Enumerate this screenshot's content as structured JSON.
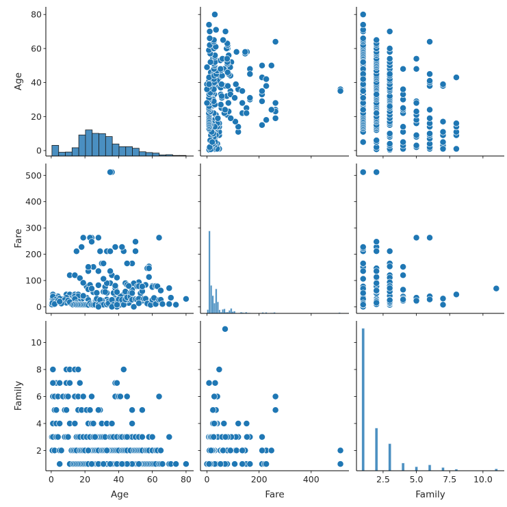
{
  "chart_data": {
    "type": "scatter",
    "kind": "pairplot",
    "grid": false,
    "variables": [
      "Age",
      "Fare",
      "Family"
    ],
    "colors": {
      "marker": "#1f77b4",
      "marker_edge": "#ffffff",
      "hist_fill": "#4a8fc1",
      "age_hist_edge": "#1a1a1a",
      "hist_edge": "#d9e6f0",
      "axis": "#000000"
    },
    "axes": {
      "Age": {
        "label": "Age",
        "lim": [
          -3.2,
          84.5
        ],
        "ticks": [
          0,
          20,
          40,
          60,
          80
        ],
        "tick_labels": [
          "0",
          "20",
          "40",
          "60",
          "80"
        ]
      },
      "Fare": {
        "label": "Fare",
        "lim": [
          -25,
          545
        ],
        "ticks": [
          0,
          100,
          200,
          300,
          400,
          500
        ],
        "tick_labels": [
          "0",
          "100",
          "200",
          "300",
          "400",
          "500"
        ],
        "x_ticks": [
          0,
          200,
          400
        ],
        "x_tick_labels": [
          "0",
          "200",
          "400"
        ]
      },
      "Family": {
        "label": "Family",
        "lim": [
          0.5,
          11.6
        ],
        "ticks": [
          2,
          4,
          6,
          8,
          10
        ],
        "tick_labels": [
          "2",
          "4",
          "6",
          "8",
          "10"
        ],
        "x_ticks": [
          2.5,
          5.0,
          7.5,
          10.0
        ],
        "x_tick_labels": [
          "2.5",
          "5.0",
          "7.5",
          "10.0"
        ]
      }
    },
    "diagonal": {
      "Age": {
        "type": "hist",
        "bin_start": 0.42,
        "bin_width": 3.98,
        "counts": [
          40,
          14,
          15,
          31,
          79,
          98,
          85,
          84,
          73,
          45,
          35,
          35,
          29,
          16,
          13,
          11,
          4,
          5,
          1,
          1
        ]
      },
      "Fare": {
        "type": "hist",
        "bin_start": 0,
        "bin_width": 6.4,
        "counts": [
          15,
          330,
          112,
          71,
          41,
          98,
          46,
          14,
          5,
          16,
          18,
          5,
          5,
          12,
          20,
          7,
          9,
          2,
          0,
          1,
          5,
          3,
          2,
          5,
          2,
          2,
          0,
          0,
          0,
          0,
          0,
          0,
          0,
          4,
          0,
          4,
          0,
          0,
          2,
          2,
          4,
          0,
          0,
          0,
          0,
          0,
          0,
          0,
          0,
          0,
          0,
          0,
          0,
          0,
          0,
          0,
          0,
          0,
          0,
          0,
          0,
          0,
          0,
          0,
          0,
          0,
          0,
          0,
          0,
          0,
          0,
          0,
          0,
          0,
          0,
          0,
          0,
          0,
          0,
          3
        ]
      },
      "Family": {
        "type": "hist",
        "bin_width": 0.2,
        "values": [
          1,
          2,
          3,
          4,
          5,
          6,
          7,
          8,
          11
        ],
        "counts": [
          537,
          161,
          102,
          29,
          15,
          22,
          12,
          6,
          7
        ]
      }
    },
    "record_fields": [
      "Age",
      "Fare",
      "Family"
    ],
    "records": [
      [
        1,
        46.9,
        8
      ],
      [
        9,
        46.9,
        8
      ],
      [
        11,
        46.9,
        8
      ],
      [
        14,
        46.9,
        8
      ],
      [
        16,
        46.9,
        8
      ],
      [
        43,
        46.9,
        8
      ],
      [
        2,
        31.3,
        7
      ],
      [
        4,
        31.3,
        7
      ],
      [
        9,
        31.3,
        7
      ],
      [
        11,
        31.3,
        7
      ],
      [
        17,
        7.9,
        7
      ],
      [
        38,
        31.3,
        7
      ],
      [
        39,
        31.3,
        7
      ],
      [
        3,
        31.4,
        7
      ],
      [
        5,
        31.4,
        7
      ],
      [
        1,
        7.9,
        7
      ],
      [
        1,
        39.7,
        6
      ],
      [
        2,
        29.1,
        6
      ],
      [
        4,
        39.7,
        6
      ],
      [
        7,
        29.1,
        6
      ],
      [
        9,
        27.9,
        6
      ],
      [
        10,
        27.9,
        6
      ],
      [
        14,
        39.7,
        6
      ],
      [
        16,
        39.7,
        6
      ],
      [
        19,
        263,
        6
      ],
      [
        24,
        263,
        6
      ],
      [
        38,
        31.4,
        6
      ],
      [
        40,
        29.1,
        6
      ],
      [
        41,
        39.7,
        6
      ],
      [
        45,
        27.9,
        6
      ],
      [
        64,
        263,
        6
      ],
      [
        2,
        21.1,
        5
      ],
      [
        3,
        34.4,
        5
      ],
      [
        8,
        21.1,
        5
      ],
      [
        9,
        34.4,
        5
      ],
      [
        16,
        20.3,
        5
      ],
      [
        18,
        20.2,
        5
      ],
      [
        21,
        34.4,
        5
      ],
      [
        29,
        21.1,
        5
      ],
      [
        48,
        34.4,
        5
      ],
      [
        54,
        23,
        5
      ],
      [
        23,
        263,
        5
      ],
      [
        28,
        263,
        5
      ],
      [
        0.8,
        29,
        4
      ],
      [
        1,
        39,
        4
      ],
      [
        3,
        27.9,
        4
      ],
      [
        5,
        31.4,
        4
      ],
      [
        11,
        120,
        4
      ],
      [
        14,
        120,
        4
      ],
      [
        22,
        26,
        4
      ],
      [
        24,
        65,
        4
      ],
      [
        25,
        152,
        4
      ],
      [
        30,
        23,
        4
      ],
      [
        33,
        27.8,
        4
      ],
      [
        36,
        120,
        4
      ],
      [
        48,
        65,
        4
      ],
      [
        0.4,
        8.5,
        3
      ],
      [
        1,
        20.6,
        3
      ],
      [
        3,
        15.2,
        3
      ],
      [
        4,
        23,
        3
      ],
      [
        8,
        26,
        3
      ],
      [
        9,
        15.2,
        3
      ],
      [
        10,
        24.1,
        3
      ],
      [
        15,
        211.3,
        3
      ],
      [
        16,
        20.2,
        3
      ],
      [
        17,
        7.2,
        3
      ],
      [
        19,
        41.6,
        3
      ],
      [
        21,
        77,
        3
      ],
      [
        23,
        83.2,
        3
      ],
      [
        25,
        151.6,
        3
      ],
      [
        27,
        12.5,
        3
      ],
      [
        29,
        211.3,
        3
      ],
      [
        30,
        164.9,
        3
      ],
      [
        31,
        18.8,
        3
      ],
      [
        32,
        15.2,
        3
      ],
      [
        35,
        20.5,
        3
      ],
      [
        36,
        120,
        3
      ],
      [
        37,
        24.1,
        3
      ],
      [
        39,
        110.9,
        3
      ],
      [
        41,
        18.8,
        3
      ],
      [
        42,
        20.5,
        3
      ],
      [
        44,
        57.9,
        3
      ],
      [
        46,
        14.5,
        3
      ],
      [
        48,
        164.9,
        3
      ],
      [
        50,
        211.5,
        3
      ],
      [
        52,
        93.5,
        3
      ],
      [
        54,
        77.3,
        3
      ],
      [
        58,
        153.5,
        3
      ],
      [
        60,
        79.2,
        3
      ],
      [
        70,
        71,
        3
      ],
      [
        26,
        19.3,
        3
      ],
      [
        45,
        26.3,
        3
      ],
      [
        0.7,
        14.5,
        2
      ],
      [
        2,
        10.5,
        2
      ],
      [
        5,
        19.3,
        2
      ],
      [
        6,
        12.5,
        2
      ],
      [
        12,
        11.2,
        2
      ],
      [
        13,
        19.5,
        2
      ],
      [
        14,
        30,
        2
      ],
      [
        15,
        14.5,
        2
      ],
      [
        17,
        108.9,
        2
      ],
      [
        18,
        227.5,
        2
      ],
      [
        19,
        91.1,
        2
      ],
      [
        20,
        9.8,
        2
      ],
      [
        22,
        66.6,
        2
      ],
      [
        24,
        247.5,
        2
      ],
      [
        25,
        55.4,
        2
      ],
      [
        26,
        14.5,
        2
      ],
      [
        27,
        53.1,
        2
      ],
      [
        28,
        82.2,
        2
      ],
      [
        30,
        24,
        2
      ],
      [
        31,
        57,
        2
      ],
      [
        32,
        76.3,
        2
      ],
      [
        33,
        53.1,
        2
      ],
      [
        34,
        21,
        2
      ],
      [
        35,
        90,
        2
      ],
      [
        36,
        512.3,
        2
      ],
      [
        37,
        52.6,
        2
      ],
      [
        38,
        71.3,
        2
      ],
      [
        39,
        55.9,
        2
      ],
      [
        40,
        9.5,
        2
      ],
      [
        42,
        227.5,
        2
      ],
      [
        43,
        211.5,
        2
      ],
      [
        44,
        90,
        2
      ],
      [
        45,
        83.5,
        2
      ],
      [
        47,
        52,
        2
      ],
      [
        49,
        89.1,
        2
      ],
      [
        50,
        247.5,
        2
      ],
      [
        51,
        77.9,
        2
      ],
      [
        52,
        78.3,
        2
      ],
      [
        53,
        51.5,
        2
      ],
      [
        54,
        59.4,
        2
      ],
      [
        56,
        83.2,
        2
      ],
      [
        57,
        146.5,
        2
      ],
      [
        58,
        113.3,
        2
      ],
      [
        60,
        75.3,
        2
      ],
      [
        62,
        79.2,
        2
      ],
      [
        63,
        77.9,
        2
      ],
      [
        65,
        61.9,
        2
      ],
      [
        22,
        135.6,
        2
      ],
      [
        33,
        90,
        2
      ],
      [
        5,
        20,
        1
      ],
      [
        11,
        18,
        1
      ],
      [
        13,
        8,
        1
      ],
      [
        14,
        9,
        1
      ],
      [
        15,
        8,
        1
      ],
      [
        16,
        8,
        1
      ],
      [
        17,
        7.9,
        1
      ],
      [
        18,
        7.8,
        1
      ],
      [
        19,
        8,
        1
      ],
      [
        20,
        7.9,
        1
      ],
      [
        21,
        8,
        1
      ],
      [
        22,
        7.3,
        1
      ],
      [
        23,
        13,
        1
      ],
      [
        24,
        7.9,
        1
      ],
      [
        25,
        7.2,
        1
      ],
      [
        26,
        8,
        1
      ],
      [
        27,
        30.5,
        1
      ],
      [
        28,
        7.9,
        1
      ],
      [
        29,
        26,
        1
      ],
      [
        30,
        8,
        1
      ],
      [
        31,
        7.8,
        1
      ],
      [
        32,
        56.5,
        1
      ],
      [
        33,
        8.7,
        1
      ],
      [
        34,
        13,
        1
      ],
      [
        35,
        512.3,
        1
      ],
      [
        36,
        26.3,
        1
      ],
      [
        37,
        7.9,
        1
      ],
      [
        38,
        80,
        1
      ],
      [
        39,
        0,
        1
      ],
      [
        40,
        27.7,
        1
      ],
      [
        41,
        7.9,
        1
      ],
      [
        42,
        26.6,
        1
      ],
      [
        43,
        8,
        1
      ],
      [
        44,
        27.7,
        1
      ],
      [
        45,
        35.5,
        1
      ],
      [
        46,
        79.2,
        1
      ],
      [
        47,
        38.5,
        1
      ],
      [
        48,
        26.6,
        1
      ],
      [
        49,
        0,
        1
      ],
      [
        50,
        28.7,
        1
      ],
      [
        51,
        26.6,
        1
      ],
      [
        52,
        30.5,
        1
      ],
      [
        54,
        77.3,
        1
      ],
      [
        55,
        30.5,
        1
      ],
      [
        56,
        30.7,
        1
      ],
      [
        57,
        12.4,
        1
      ],
      [
        58,
        146.5,
        1
      ],
      [
        59,
        7.3,
        1
      ],
      [
        60,
        26.5,
        1
      ],
      [
        61,
        33.5,
        1
      ],
      [
        62,
        10.5,
        1
      ],
      [
        64,
        26,
        1
      ],
      [
        65,
        26.6,
        1
      ],
      [
        66,
        10.5,
        1
      ],
      [
        70,
        10.5,
        1
      ],
      [
        71,
        34.7,
        1
      ],
      [
        74,
        7.8,
        1
      ],
      [
        80,
        30,
        1
      ],
      [
        28,
        135.6,
        1
      ],
      [
        22,
        151.6,
        1
      ],
      [
        38,
        227.5,
        1
      ],
      [
        33,
        211.3,
        1
      ],
      [
        35,
        135.6,
        1
      ],
      [
        24,
        69.3,
        1
      ],
      [
        31,
        106.4,
        1
      ],
      [
        48,
        52,
        1
      ],
      [
        28,
        0,
        1
      ],
      [
        36,
        0,
        1
      ],
      [
        39,
        7.9,
        1
      ],
      [
        52,
        13.5,
        1
      ],
      [
        45,
        164.9,
        1
      ],
      [
        31,
        164.9,
        1
      ],
      [
        35,
        211.3,
        1
      ],
      [
        42,
        227.5,
        1
      ],
      [
        null,
        69.55,
        11
      ],
      [
        null,
        7.75,
        1
      ],
      [
        null,
        8.05,
        1
      ],
      [
        null,
        15.5,
        2
      ],
      [
        null,
        25.5,
        3
      ],
      [
        null,
        221.8,
        1
      ],
      [
        null,
        227.5,
        1
      ]
    ]
  }
}
